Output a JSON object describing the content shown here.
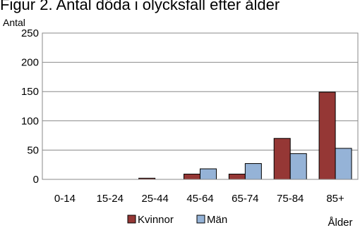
{
  "title": "Figur 2. Antal döda i olycksfall efter ålder",
  "chart_data": {
    "type": "bar",
    "title": "Figur 2. Antal döda i olycksfall efter ålder",
    "ylabel": "Antal",
    "xlabel": "Ålder",
    "categories": [
      "0-14",
      "15-24",
      "25-44",
      "45-64",
      "65-74",
      "75-84",
      "85+"
    ],
    "series": [
      {
        "name": "Kvinnor",
        "color": "#953735",
        "values": [
          0,
          0,
          2,
          9,
          9,
          70,
          149
        ]
      },
      {
        "name": "Män",
        "color": "#95b3d7",
        "values": [
          0,
          0,
          0,
          18,
          27,
          44,
          53
        ]
      }
    ],
    "ylim": [
      0,
      250
    ],
    "yticks": [
      0,
      50,
      100,
      150,
      200,
      250
    ],
    "grid": true,
    "legend": "bottom"
  }
}
